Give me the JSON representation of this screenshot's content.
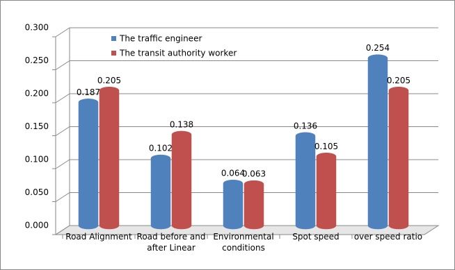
{
  "chart_data": {
    "type": "bar",
    "categories": [
      "Road Alignment",
      "Road before and after Linear",
      "Environmental conditions",
      "Spot speed",
      "over speed ratio"
    ],
    "series": [
      {
        "name": "The traffic engineer",
        "color": "#4f81bd",
        "values": [
          0.187,
          0.102,
          0.064,
          0.136,
          0.254
        ]
      },
      {
        "name": "The transit authority worker",
        "color": "#c0504d",
        "values": [
          0.205,
          0.138,
          0.063,
          0.105,
          0.205
        ]
      }
    ],
    "ylim": [
      0,
      0.3
    ],
    "yticks": [
      {
        "value": 0,
        "label": "0.000"
      },
      {
        "value": 0.05,
        "label": "0.050"
      },
      {
        "value": 0.1,
        "label": "0.100"
      },
      {
        "value": 0.15,
        "label": "0.150"
      },
      {
        "value": 0.2,
        "label": "0.200"
      },
      {
        "value": 0.25,
        "label": "0.250"
      },
      {
        "value": 0.3,
        "label": "0.300"
      }
    ],
    "grid": true
  }
}
